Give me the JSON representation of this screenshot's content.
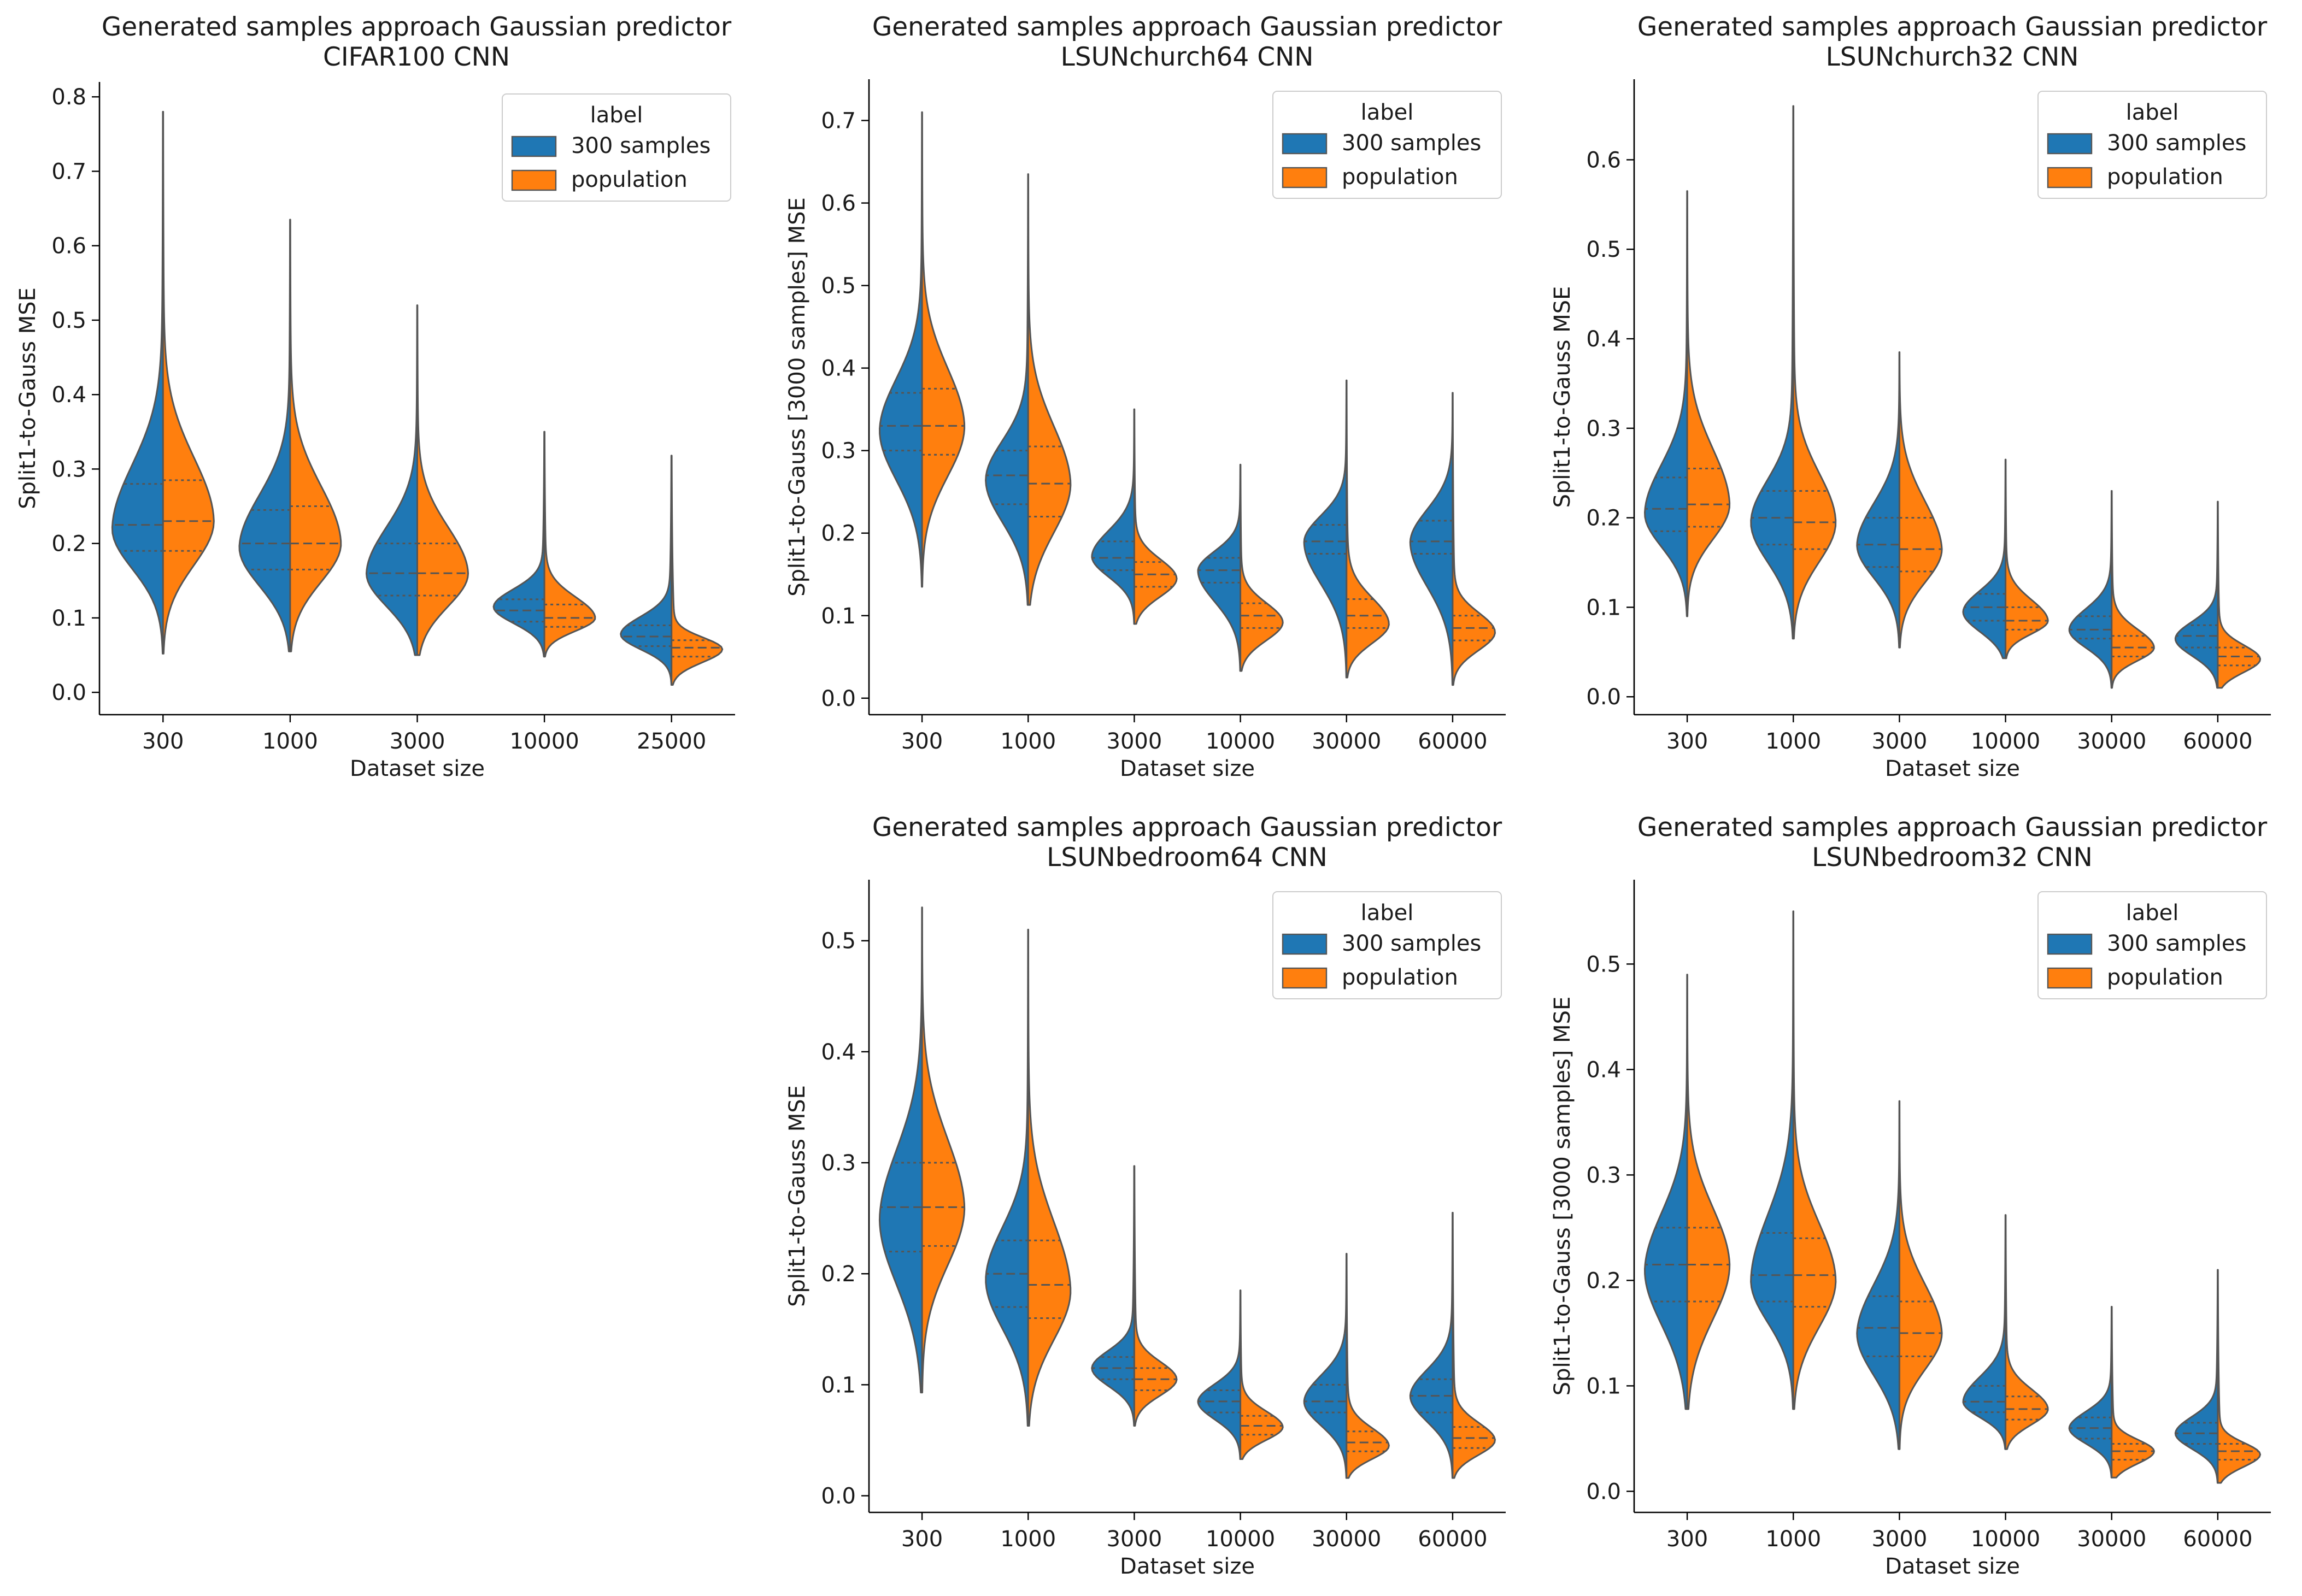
{
  "legend_title": "label",
  "legend_labels": [
    "300 samples",
    "population"
  ],
  "colors": {
    "left": "#1f77b4",
    "right": "#ff7f0e",
    "outline": "#555555"
  },
  "chart_data": [
    {
      "type": "violin",
      "title_line1": "Generated samples approach Gaussian predictor",
      "title_line2": "CIFAR100 CNN",
      "xlabel": "Dataset size",
      "ylabel": "Split1-to-Gauss MSE",
      "ylim": [
        -0.03,
        0.82
      ],
      "yticks": [
        "0.0",
        "0.1",
        "0.2",
        "0.3",
        "0.4",
        "0.5",
        "0.6",
        "0.7",
        "0.8"
      ],
      "categories": [
        "300",
        "1000",
        "3000",
        "10000",
        "25000"
      ],
      "series": [
        {
          "name": "300 samples",
          "stats": [
            {
              "min": 0.052,
              "q1": 0.19,
              "median": 0.225,
              "q3": 0.28,
              "mode": 0.22,
              "max": 0.78
            },
            {
              "min": 0.055,
              "q1": 0.165,
              "median": 0.2,
              "q3": 0.245,
              "mode": 0.195,
              "max": 0.635
            },
            {
              "min": 0.05,
              "q1": 0.13,
              "median": 0.16,
              "q3": 0.2,
              "mode": 0.16,
              "max": 0.52
            },
            {
              "min": 0.048,
              "q1": 0.095,
              "median": 0.11,
              "q3": 0.125,
              "mode": 0.115,
              "max": 0.35
            },
            {
              "min": 0.01,
              "q1": 0.062,
              "median": 0.075,
              "q3": 0.09,
              "mode": 0.078,
              "max": 0.318
            }
          ]
        },
        {
          "name": "population",
          "stats": [
            {
              "min": 0.052,
              "q1": 0.19,
              "median": 0.23,
              "q3": 0.285,
              "mode": 0.23,
              "max": 0.78
            },
            {
              "min": 0.055,
              "q1": 0.165,
              "median": 0.2,
              "q3": 0.25,
              "mode": 0.2,
              "max": 0.635
            },
            {
              "min": 0.05,
              "q1": 0.13,
              "median": 0.16,
              "q3": 0.2,
              "mode": 0.16,
              "max": 0.52
            },
            {
              "min": 0.048,
              "q1": 0.088,
              "median": 0.1,
              "q3": 0.118,
              "mode": 0.1,
              "max": 0.35
            },
            {
              "min": 0.01,
              "q1": 0.048,
              "median": 0.06,
              "q3": 0.07,
              "mode": 0.058,
              "max": 0.318
            }
          ]
        }
      ]
    },
    {
      "type": "violin",
      "title_line1": "Generated samples approach Gaussian predictor",
      "title_line2": "LSUNchurch64 CNN",
      "xlabel": "Dataset size",
      "ylabel": "Split1-to-Gauss [3000 samples] MSE",
      "ylim": [
        -0.02,
        0.75
      ],
      "yticks": [
        "0.0",
        "0.1",
        "0.2",
        "0.3",
        "0.4",
        "0.5",
        "0.6",
        "0.7"
      ],
      "categories": [
        "300",
        "1000",
        "3000",
        "10000",
        "30000",
        "60000"
      ],
      "series": [
        {
          "name": "300 samples",
          "stats": [
            {
              "min": 0.135,
              "q1": 0.3,
              "median": 0.33,
              "q3": 0.37,
              "mode": 0.325,
              "max": 0.71
            },
            {
              "min": 0.113,
              "q1": 0.235,
              "median": 0.27,
              "q3": 0.3,
              "mode": 0.265,
              "max": 0.635
            },
            {
              "min": 0.09,
              "q1": 0.155,
              "median": 0.17,
              "q3": 0.19,
              "mode": 0.172,
              "max": 0.35
            },
            {
              "min": 0.033,
              "q1": 0.14,
              "median": 0.155,
              "q3": 0.17,
              "mode": 0.155,
              "max": 0.283
            },
            {
              "min": 0.025,
              "q1": 0.175,
              "median": 0.19,
              "q3": 0.21,
              "mode": 0.19,
              "max": 0.385
            },
            {
              "min": 0.016,
              "q1": 0.175,
              "median": 0.19,
              "q3": 0.215,
              "mode": 0.19,
              "max": 0.37
            }
          ]
        },
        {
          "name": "population",
          "stats": [
            {
              "min": 0.135,
              "q1": 0.295,
              "median": 0.33,
              "q3": 0.375,
              "mode": 0.33,
              "max": 0.71
            },
            {
              "min": 0.113,
              "q1": 0.22,
              "median": 0.26,
              "q3": 0.305,
              "mode": 0.26,
              "max": 0.635
            },
            {
              "min": 0.09,
              "q1": 0.135,
              "median": 0.15,
              "q3": 0.165,
              "mode": 0.145,
              "max": 0.35
            },
            {
              "min": 0.033,
              "q1": 0.085,
              "median": 0.1,
              "q3": 0.115,
              "mode": 0.092,
              "max": 0.283
            },
            {
              "min": 0.025,
              "q1": 0.085,
              "median": 0.1,
              "q3": 0.12,
              "mode": 0.09,
              "max": 0.385
            },
            {
              "min": 0.016,
              "q1": 0.07,
              "median": 0.085,
              "q3": 0.1,
              "mode": 0.08,
              "max": 0.37
            }
          ]
        }
      ]
    },
    {
      "type": "violin",
      "title_line1": "Generated samples approach Gaussian predictor",
      "title_line2": "LSUNchurch32 CNN",
      "xlabel": "Dataset size",
      "ylabel": "Split1-to-Gauss MSE",
      "ylim": [
        -0.02,
        0.69
      ],
      "yticks": [
        "0.0",
        "0.1",
        "0.2",
        "0.3",
        "0.4",
        "0.5",
        "0.6"
      ],
      "categories": [
        "300",
        "1000",
        "3000",
        "10000",
        "30000",
        "60000"
      ],
      "series": [
        {
          "name": "300 samples",
          "stats": [
            {
              "min": 0.09,
              "q1": 0.185,
              "median": 0.21,
              "q3": 0.245,
              "mode": 0.205,
              "max": 0.565
            },
            {
              "min": 0.065,
              "q1": 0.17,
              "median": 0.2,
              "q3": 0.23,
              "mode": 0.195,
              "max": 0.66
            },
            {
              "min": 0.055,
              "q1": 0.145,
              "median": 0.17,
              "q3": 0.2,
              "mode": 0.17,
              "max": 0.385
            },
            {
              "min": 0.043,
              "q1": 0.085,
              "median": 0.1,
              "q3": 0.115,
              "mode": 0.095,
              "max": 0.265
            },
            {
              "min": 0.01,
              "q1": 0.065,
              "median": 0.075,
              "q3": 0.09,
              "mode": 0.075,
              "max": 0.23
            },
            {
              "min": 0.01,
              "q1": 0.055,
              "median": 0.068,
              "q3": 0.08,
              "mode": 0.065,
              "max": 0.218
            }
          ]
        },
        {
          "name": "population",
          "stats": [
            {
              "min": 0.09,
              "q1": 0.19,
              "median": 0.215,
              "q3": 0.255,
              "mode": 0.215,
              "max": 0.565
            },
            {
              "min": 0.065,
              "q1": 0.165,
              "median": 0.195,
              "q3": 0.23,
              "mode": 0.195,
              "max": 0.66
            },
            {
              "min": 0.055,
              "q1": 0.14,
              "median": 0.165,
              "q3": 0.2,
              "mode": 0.165,
              "max": 0.385
            },
            {
              "min": 0.043,
              "q1": 0.075,
              "median": 0.085,
              "q3": 0.1,
              "mode": 0.085,
              "max": 0.265
            },
            {
              "min": 0.01,
              "q1": 0.045,
              "median": 0.055,
              "q3": 0.068,
              "mode": 0.055,
              "max": 0.23
            },
            {
              "min": 0.01,
              "q1": 0.035,
              "median": 0.045,
              "q3": 0.055,
              "mode": 0.042,
              "max": 0.218
            }
          ]
        }
      ]
    },
    {
      "type": "violin",
      "title_line1": "Generated samples approach Gaussian predictor",
      "title_line2": "LSUNbedroom64 CNN",
      "xlabel": "Dataset size",
      "ylabel": "Split1-to-Gauss MSE",
      "ylim": [
        -0.015,
        0.555
      ],
      "yticks": [
        "0.0",
        "0.1",
        "0.2",
        "0.3",
        "0.4",
        "0.5"
      ],
      "categories": [
        "300",
        "1000",
        "3000",
        "10000",
        "30000",
        "60000"
      ],
      "series": [
        {
          "name": "300 samples",
          "stats": [
            {
              "min": 0.093,
              "q1": 0.22,
              "median": 0.26,
              "q3": 0.3,
              "mode": 0.25,
              "max": 0.53
            },
            {
              "min": 0.063,
              "q1": 0.17,
              "median": 0.2,
              "q3": 0.23,
              "mode": 0.195,
              "max": 0.51
            },
            {
              "min": 0.063,
              "q1": 0.105,
              "median": 0.115,
              "q3": 0.125,
              "mode": 0.115,
              "max": 0.297
            },
            {
              "min": 0.033,
              "q1": 0.075,
              "median": 0.085,
              "q3": 0.095,
              "mode": 0.085,
              "max": 0.185
            },
            {
              "min": 0.016,
              "q1": 0.075,
              "median": 0.085,
              "q3": 0.1,
              "mode": 0.085,
              "max": 0.218
            },
            {
              "min": 0.016,
              "q1": 0.075,
              "median": 0.09,
              "q3": 0.105,
              "mode": 0.09,
              "max": 0.255
            }
          ]
        },
        {
          "name": "population",
          "stats": [
            {
              "min": 0.093,
              "q1": 0.225,
              "median": 0.26,
              "q3": 0.3,
              "mode": 0.26,
              "max": 0.53
            },
            {
              "min": 0.063,
              "q1": 0.16,
              "median": 0.19,
              "q3": 0.23,
              "mode": 0.185,
              "max": 0.51
            },
            {
              "min": 0.063,
              "q1": 0.095,
              "median": 0.105,
              "q3": 0.115,
              "mode": 0.105,
              "max": 0.297
            },
            {
              "min": 0.033,
              "q1": 0.055,
              "median": 0.063,
              "q3": 0.072,
              "mode": 0.062,
              "max": 0.185
            },
            {
              "min": 0.016,
              "q1": 0.04,
              "median": 0.048,
              "q3": 0.058,
              "mode": 0.045,
              "max": 0.218
            },
            {
              "min": 0.016,
              "q1": 0.043,
              "median": 0.052,
              "q3": 0.062,
              "mode": 0.05,
              "max": 0.255
            }
          ]
        }
      ]
    },
    {
      "type": "violin",
      "title_line1": "Generated samples approach Gaussian predictor",
      "title_line2": "LSUNbedroom32 CNN",
      "xlabel": "Dataset size",
      "ylabel": "Split1-to-Gauss [3000 samples] MSE",
      "ylim": [
        -0.02,
        0.58
      ],
      "yticks": [
        "0.0",
        "0.1",
        "0.2",
        "0.3",
        "0.4",
        "0.5"
      ],
      "categories": [
        "300",
        "1000",
        "3000",
        "10000",
        "30000",
        "60000"
      ],
      "series": [
        {
          "name": "300 samples",
          "stats": [
            {
              "min": 0.078,
              "q1": 0.18,
              "median": 0.215,
              "q3": 0.25,
              "mode": 0.21,
              "max": 0.49
            },
            {
              "min": 0.078,
              "q1": 0.18,
              "median": 0.205,
              "q3": 0.245,
              "mode": 0.2,
              "max": 0.55
            },
            {
              "min": 0.04,
              "q1": 0.128,
              "median": 0.155,
              "q3": 0.185,
              "mode": 0.15,
              "max": 0.37
            },
            {
              "min": 0.04,
              "q1": 0.075,
              "median": 0.085,
              "q3": 0.1,
              "mode": 0.085,
              "max": 0.262
            },
            {
              "min": 0.013,
              "q1": 0.05,
              "median": 0.06,
              "q3": 0.07,
              "mode": 0.06,
              "max": 0.175
            },
            {
              "min": 0.008,
              "q1": 0.045,
              "median": 0.055,
              "q3": 0.065,
              "mode": 0.055,
              "max": 0.21
            }
          ]
        },
        {
          "name": "population",
          "stats": [
            {
              "min": 0.078,
              "q1": 0.18,
              "median": 0.215,
              "q3": 0.25,
              "mode": 0.215,
              "max": 0.49
            },
            {
              "min": 0.078,
              "q1": 0.175,
              "median": 0.205,
              "q3": 0.24,
              "mode": 0.2,
              "max": 0.55
            },
            {
              "min": 0.04,
              "q1": 0.128,
              "median": 0.15,
              "q3": 0.18,
              "mode": 0.15,
              "max": 0.37
            },
            {
              "min": 0.04,
              "q1": 0.068,
              "median": 0.078,
              "q3": 0.09,
              "mode": 0.078,
              "max": 0.262
            },
            {
              "min": 0.013,
              "q1": 0.03,
              "median": 0.038,
              "q3": 0.045,
              "mode": 0.038,
              "max": 0.175
            },
            {
              "min": 0.008,
              "q1": 0.03,
              "median": 0.038,
              "q3": 0.045,
              "mode": 0.035,
              "max": 0.21
            }
          ]
        }
      ]
    }
  ]
}
